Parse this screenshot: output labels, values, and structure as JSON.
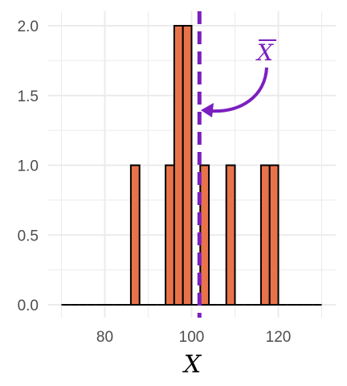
{
  "chart_data": {
    "type": "histogram",
    "title": "",
    "xlabel": "X",
    "ylabel": "",
    "xlim": [
      70,
      130
    ],
    "ylim": [
      0,
      2
    ],
    "bin_width": 2,
    "bins": [
      {
        "x0": 70,
        "x1": 72,
        "count": 0
      },
      {
        "x0": 72,
        "x1": 74,
        "count": 0
      },
      {
        "x0": 74,
        "x1": 76,
        "count": 0
      },
      {
        "x0": 76,
        "x1": 78,
        "count": 0
      },
      {
        "x0": 78,
        "x1": 80,
        "count": 0
      },
      {
        "x0": 80,
        "x1": 82,
        "count": 0
      },
      {
        "x0": 82,
        "x1": 84,
        "count": 0
      },
      {
        "x0": 84,
        "x1": 86,
        "count": 0
      },
      {
        "x0": 86,
        "x1": 88,
        "count": 1
      },
      {
        "x0": 88,
        "x1": 90,
        "count": 0
      },
      {
        "x0": 90,
        "x1": 92,
        "count": 0
      },
      {
        "x0": 92,
        "x1": 94,
        "count": 0
      },
      {
        "x0": 94,
        "x1": 96,
        "count": 1
      },
      {
        "x0": 96,
        "x1": 98,
        "count": 2
      },
      {
        "x0": 98,
        "x1": 100,
        "count": 2
      },
      {
        "x0": 100,
        "x1": 102,
        "count": 0
      },
      {
        "x0": 102,
        "x1": 104,
        "count": 1
      },
      {
        "x0": 104,
        "x1": 106,
        "count": 0
      },
      {
        "x0": 106,
        "x1": 108,
        "count": 0
      },
      {
        "x0": 108,
        "x1": 110,
        "count": 1
      },
      {
        "x0": 110,
        "x1": 112,
        "count": 0
      },
      {
        "x0": 112,
        "x1": 114,
        "count": 0
      },
      {
        "x0": 114,
        "x1": 116,
        "count": 0
      },
      {
        "x0": 116,
        "x1": 118,
        "count": 1
      },
      {
        "x0": 118,
        "x1": 120,
        "count": 1
      },
      {
        "x0": 120,
        "x1": 122,
        "count": 0
      },
      {
        "x0": 122,
        "x1": 124,
        "count": 0
      },
      {
        "x0": 124,
        "x1": 126,
        "count": 0
      },
      {
        "x0": 126,
        "x1": 128,
        "count": 0
      },
      {
        "x0": 128,
        "x1": 130,
        "count": 0
      }
    ],
    "x_ticks": [
      80,
      100,
      120
    ],
    "y_ticks": [
      "0.0",
      "0.5",
      "1.0",
      "1.5",
      "2.0"
    ],
    "mean_line": {
      "x": 102,
      "label": "X̄",
      "color": "#7b1fc0",
      "style": "dashed"
    },
    "grid": true,
    "colors": {
      "bar_fill": "#e8734a",
      "bar_stroke": "#000000",
      "grid": "#ebebeb",
      "annotation": "#7b1fc0"
    }
  }
}
